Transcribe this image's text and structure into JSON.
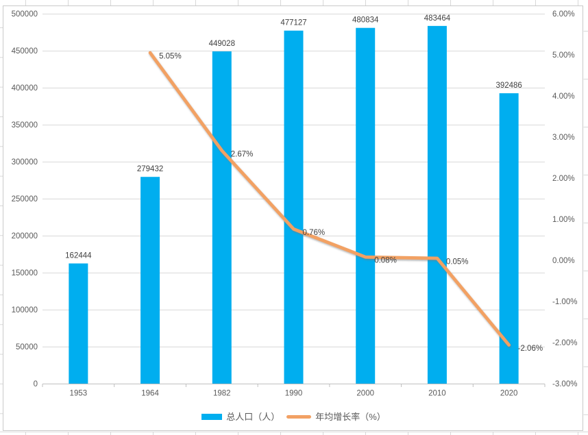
{
  "chart_data": {
    "type": "bar+line combo",
    "categories": [
      "1953",
      "1964",
      "1982",
      "1990",
      "2000",
      "2010",
      "2020"
    ],
    "series": [
      {
        "name": "总人口（人）",
        "type": "bar",
        "axis": "left",
        "color": "#00AEEF",
        "values": [
          162444,
          279432,
          449028,
          477127,
          480834,
          483464,
          392486
        ],
        "data_labels": [
          "162444",
          "279432",
          "449028",
          "477127",
          "480834",
          "483464",
          "392486"
        ]
      },
      {
        "name": "年均增长率（%）",
        "type": "line",
        "axis": "right",
        "color": "#F2A164",
        "values": [
          null,
          5.05,
          2.67,
          0.76,
          0.08,
          0.05,
          -2.06
        ],
        "data_labels": [
          null,
          "5.05%",
          "2.67%",
          "0.76%",
          "0.08%",
          "0.05%",
          "-2.06%"
        ]
      }
    ],
    "left_axis": {
      "min": 0,
      "max": 500000,
      "step": 50000,
      "tick_labels": [
        "500000",
        "450000",
        "400000",
        "350000",
        "300000",
        "250000",
        "200000",
        "150000",
        "100000",
        "50000",
        "0"
      ]
    },
    "right_axis": {
      "min": -3,
      "max": 6,
      "step": 1,
      "tick_labels": [
        "6.00%",
        "5.00%",
        "4.00%",
        "3.00%",
        "2.00%",
        "1.00%",
        "0.00%",
        "-1.00%",
        "-2.00%",
        "-3.00%"
      ]
    },
    "title": "",
    "xlabel": "",
    "ylabel": "",
    "grid": true,
    "legend_position": "bottom"
  },
  "legend": {
    "items": [
      {
        "label": "总人口（人）",
        "marker": "rect",
        "color": "#00AEEF"
      },
      {
        "label": "年均增长率（%）",
        "marker": "line",
        "color": "#F2A164"
      }
    ]
  },
  "colors": {
    "bar": "#00AEEF",
    "line": "#F2A164",
    "gridline": "#D9D9D9",
    "axis_line": "#BFBFBF",
    "axis_text": "#595959",
    "data_label_text": "#404040",
    "chart_border": "#C9C9C9",
    "sheet_gridline": "#D8D8D8"
  }
}
